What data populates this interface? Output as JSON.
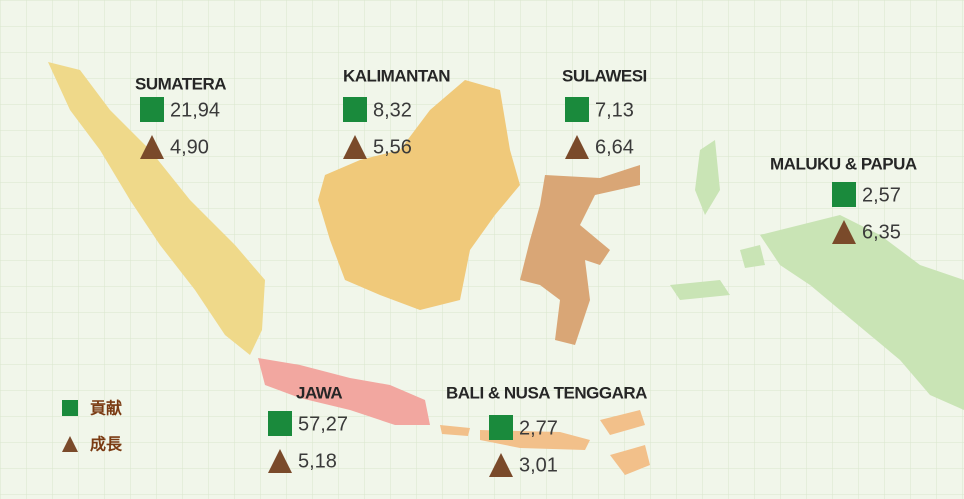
{
  "legend": {
    "contribution": "貢献",
    "growth": "成長"
  },
  "regions": [
    {
      "name": "SUMATERA",
      "contribution": "21,94",
      "growth": "4,90"
    },
    {
      "name": "KALIMANTAN",
      "contribution": "8,32",
      "growth": "5,56"
    },
    {
      "name": "SULAWESI",
      "contribution": "7,13",
      "growth": "6,64"
    },
    {
      "name": "MALUKU & PAPUA",
      "contribution": "2,57",
      "growth": "6,35"
    },
    {
      "name": "JAWA",
      "contribution": "57,27",
      "growth": "5,18"
    },
    {
      "name": "BALI & NUSA TENGGARA",
      "contribution": "2,77",
      "growth": "3,01"
    }
  ]
}
